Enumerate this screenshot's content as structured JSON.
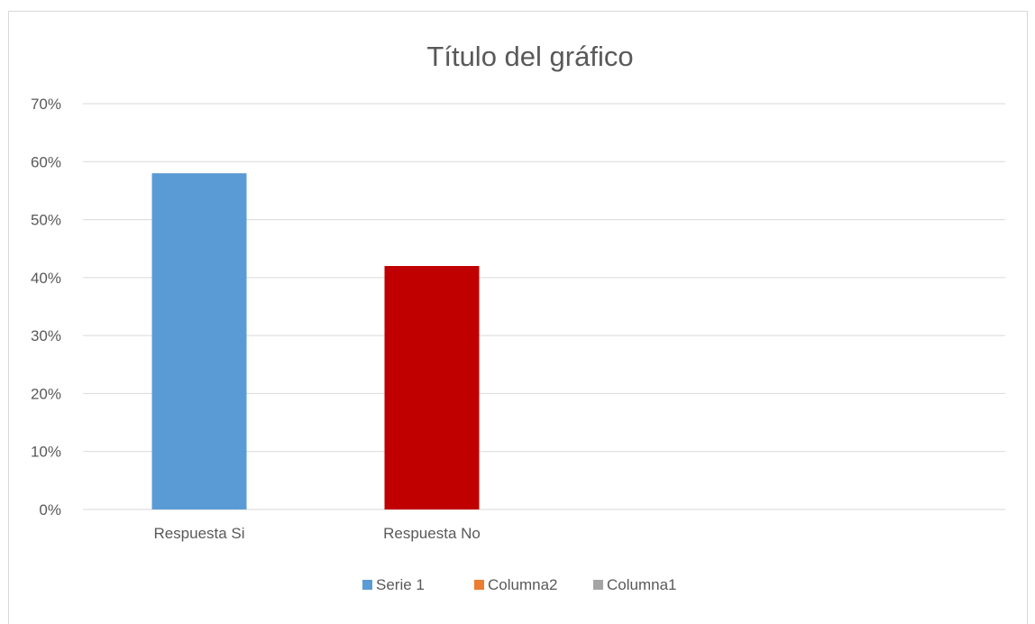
{
  "chart_data": {
    "type": "bar",
    "title": "Título del gráfico",
    "xlabel": "",
    "ylabel": "",
    "categories": [
      "Respuesta Si",
      "Respuesta No"
    ],
    "values": [
      0.58,
      0.42
    ],
    "bar_colors": [
      "#5b9bd5",
      "#c00000"
    ],
    "ylim": [
      0,
      0.7
    ],
    "yticks": [
      {
        "value": 0,
        "label": "0%"
      },
      {
        "value": 0.1,
        "label": "10%"
      },
      {
        "value": 0.2,
        "label": "20%"
      },
      {
        "value": 0.3,
        "label": "30%"
      },
      {
        "value": 0.4,
        "label": "40%"
      },
      {
        "value": 0.5,
        "label": "50%"
      },
      {
        "value": 0.6,
        "label": "60%"
      },
      {
        "value": 0.7,
        "label": "70%"
      }
    ],
    "grid": true,
    "legend_position": "bottom",
    "legend": [
      {
        "name": "Serie 1",
        "color": "#5b9bd5"
      },
      {
        "name": "Columna2",
        "color": "#ed7d31"
      },
      {
        "name": "Columna1",
        "color": "#a5a5a5"
      }
    ],
    "gridline_color": "#d9d9d9",
    "text_color": "#595959"
  }
}
